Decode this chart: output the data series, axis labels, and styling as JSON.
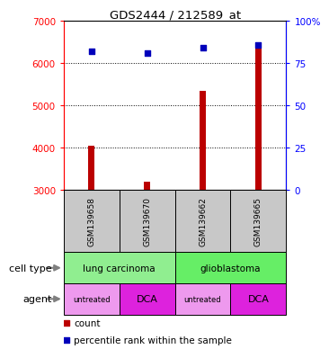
{
  "title": "GDS2444 / 212589_at",
  "samples": [
    "GSM139658",
    "GSM139670",
    "GSM139662",
    "GSM139665"
  ],
  "counts": [
    4050,
    3200,
    5350,
    6500
  ],
  "percentiles": [
    82,
    81,
    84,
    86
  ],
  "ylim_left": [
    3000,
    7000
  ],
  "ylim_right": [
    0,
    100
  ],
  "yticks_left": [
    3000,
    4000,
    5000,
    6000,
    7000
  ],
  "yticks_right": [
    0,
    25,
    50,
    75,
    100
  ],
  "cell_types": [
    {
      "label": "lung carcinoma",
      "cols": [
        0,
        1
      ],
      "color": "#90EE90"
    },
    {
      "label": "glioblastoma",
      "cols": [
        2,
        3
      ],
      "color": "#66EE66"
    }
  ],
  "agents": [
    "untreated",
    "DCA",
    "untreated",
    "DCA"
  ],
  "agent_colors": [
    "#EE99EE",
    "#DD22DD",
    "#EE99EE",
    "#DD22DD"
  ],
  "bar_color": "#BB0000",
  "dot_color": "#0000BB",
  "sample_box_color": "#C8C8C8",
  "legend_red_label": "count",
  "legend_blue_label": "percentile rank within the sample",
  "cell_type_label": "cell type",
  "agent_label": "agent",
  "bar_width": 0.12
}
